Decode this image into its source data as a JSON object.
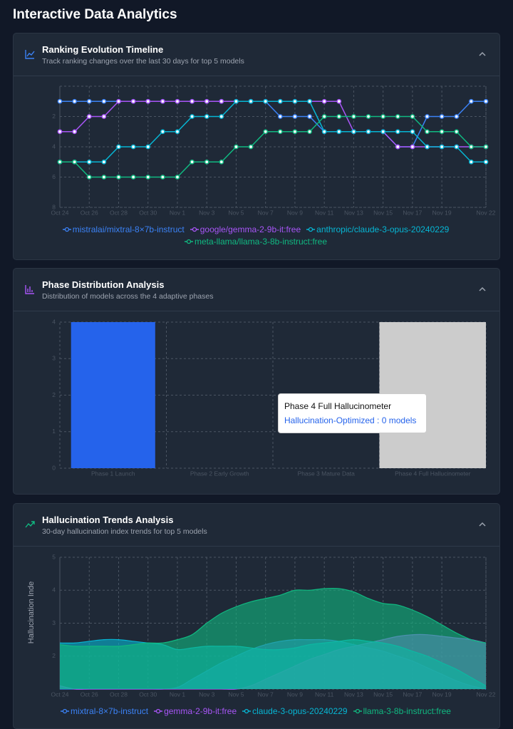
{
  "page_title": "Interactive Data Analytics",
  "chart_data": [
    {
      "type": "line",
      "title": "Ranking Evolution Timeline",
      "subtitle": "Track ranking changes over the last 30 days for top 5 models",
      "categories": [
        "Oct 24",
        null,
        "Oct 26",
        null,
        "Oct 28",
        null,
        "Oct 30",
        null,
        "Nov 1",
        null,
        "Nov 3",
        null,
        "Nov 5",
        null,
        "Nov 7",
        null,
        "Nov 9",
        null,
        "Nov 11",
        null,
        "Nov 13",
        null,
        "Nov 15",
        null,
        "Nov 17",
        null,
        "Nov 19",
        null,
        null,
        "Nov 22"
      ],
      "ylim": [
        0,
        8
      ],
      "yticks": [
        2,
        4,
        6,
        8
      ],
      "y_reversed": true,
      "grid": true,
      "legend": "bottom",
      "series": [
        {
          "name": "mistralai/mixtral-8×7b-instruct",
          "color": "#3b82f6",
          "values": [
            1,
            1,
            1,
            1,
            1,
            1,
            1,
            1,
            1,
            1,
            1,
            1,
            1,
            1,
            1,
            2,
            2,
            2,
            3,
            3,
            3,
            3,
            3,
            4,
            4,
            2,
            2,
            2,
            1,
            1
          ]
        },
        {
          "name": "google/gemma-2-9b-it:free",
          "color": "#a855f7",
          "values": [
            3,
            3,
            2,
            2,
            1,
            1,
            1,
            1,
            1,
            1,
            1,
            1,
            1,
            1,
            1,
            1,
            1,
            1,
            1,
            1,
            3,
            3,
            3,
            4,
            4,
            4,
            4,
            4,
            4,
            4
          ]
        },
        {
          "name": "anthropic/claude-3-opus-20240229",
          "color": "#06b6d4",
          "values": [
            5,
            5,
            5,
            5,
            4,
            4,
            4,
            3,
            3,
            2,
            2,
            2,
            1,
            1,
            1,
            1,
            1,
            1,
            3,
            3,
            3,
            3,
            3,
            3,
            3,
            4,
            4,
            4,
            5,
            5
          ]
        },
        {
          "name": "meta-llama/llama-3-8b-instruct:free",
          "color": "#10b981",
          "values": [
            5,
            5,
            6,
            6,
            6,
            6,
            6,
            6,
            6,
            5,
            5,
            5,
            4,
            4,
            3,
            3,
            3,
            3,
            2,
            2,
            2,
            2,
            2,
            2,
            2,
            3,
            3,
            3,
            4,
            4
          ]
        }
      ]
    },
    {
      "type": "bar",
      "title": "Phase Distribution Analysis",
      "subtitle": "Distribution of models across the 4 adaptive phases",
      "categories": [
        "Phase 1 Launch",
        "Phase 2 Early Growth",
        "Phase 3 Mature Data",
        "Phase 4 Full Hallucinometer"
      ],
      "ylim": [
        0,
        4
      ],
      "yticks": [
        0,
        1,
        2,
        3,
        4
      ],
      "grid": true,
      "series": [
        {
          "name": "Hallucination-Optimized",
          "color": "#2563eb",
          "values": [
            4,
            0,
            0,
            0
          ]
        }
      ],
      "active_index": 3,
      "cursor_color": "#cccccc",
      "tooltip": "Hallucination-Optimized : 0 models"
    },
    {
      "type": "area",
      "title": "Hallucination Trends Analysis",
      "subtitle": "30-day hallucination index trends for top 5 models",
      "y_label": "Hallucination Inde",
      "categories": [
        "Oct 24",
        null,
        "Oct 26",
        null,
        "Oct 28",
        null,
        "Oct 30",
        null,
        "Nov 1",
        null,
        "Nov 3",
        null,
        "Nov 5",
        null,
        "Nov 7",
        null,
        "Nov 9",
        null,
        "Nov 11",
        null,
        "Nov 13",
        null,
        "Nov 15",
        null,
        "Nov 17",
        null,
        "Nov 19",
        null,
        null,
        "Nov 22"
      ],
      "ylim": [
        1,
        5
      ],
      "yticks": [
        2,
        3,
        4,
        5
      ],
      "grid": true,
      "legend": "bottom",
      "series": [
        {
          "name": "mixtral-8×7b-instruct",
          "color": "#3b82f6",
          "values": [
            1,
            1,
            1,
            1,
            1,
            1,
            1,
            1,
            1.05,
            1.3,
            1.55,
            1.8,
            2.0,
            2.2,
            2.35,
            2.45,
            2.5,
            2.5,
            2.5,
            2.45,
            2.35,
            2.25,
            2.15,
            2.0,
            1.85,
            1.65,
            1.45,
            1.25,
            1.1,
            1.0
          ]
        },
        {
          "name": "gemma-2-9b-it:free",
          "color": "#a855f7",
          "values": [
            1.1,
            1,
            1,
            1,
            1,
            1,
            1,
            1,
            1,
            1,
            1,
            1,
            1,
            1.1,
            1.3,
            1.5,
            1.7,
            1.9,
            2.05,
            2.2,
            2.3,
            2.4,
            2.5,
            2.6,
            2.65,
            2.65,
            2.6,
            2.55,
            2.5,
            2.4
          ]
        },
        {
          "name": "claude-3-opus-20240229",
          "color": "#06b6d4",
          "values": [
            2.4,
            2.4,
            2.45,
            2.5,
            2.5,
            2.45,
            2.4,
            2.35,
            2.2,
            2.25,
            2.3,
            2.3,
            2.3,
            2.25,
            2.2,
            2.2,
            2.25,
            2.35,
            2.4,
            2.45,
            2.5,
            2.45,
            2.4,
            2.3,
            2.15,
            2.0,
            1.8,
            1.6,
            1.35,
            1.1
          ]
        },
        {
          "name": "llama-3-8b-instruct:free",
          "color": "#10b981",
          "values": [
            2.35,
            2.3,
            2.3,
            2.3,
            2.3,
            2.35,
            2.4,
            2.4,
            2.5,
            2.65,
            3.0,
            3.3,
            3.5,
            3.65,
            3.75,
            3.85,
            4.0,
            4.0,
            4.05,
            4.05,
            3.95,
            3.75,
            3.6,
            3.55,
            3.4,
            3.2,
            2.95,
            2.7,
            2.5,
            2.4
          ]
        }
      ]
    }
  ]
}
